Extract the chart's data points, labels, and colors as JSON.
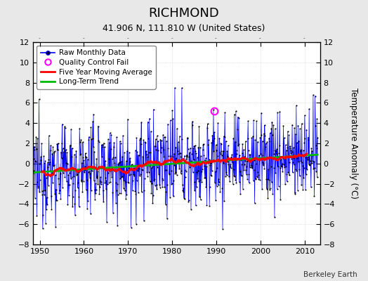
{
  "title": "RICHMOND",
  "subtitle": "41.906 N, 111.810 W (United States)",
  "ylabel": "Temperature Anomaly (°C)",
  "credit": "Berkeley Earth",
  "xlim": [
    1948.5,
    2013.5
  ],
  "ylim": [
    -8,
    12
  ],
  "yticks": [
    -8,
    -6,
    -4,
    -2,
    0,
    2,
    4,
    6,
    8,
    10,
    12
  ],
  "xticks": [
    1950,
    1960,
    1970,
    1980,
    1990,
    2000,
    2010
  ],
  "background_color": "#e8e8e8",
  "plot_bg_color": "#ffffff",
  "raw_line_color": "#0000ff",
  "raw_marker_color": "#000000",
  "moving_avg_color": "#ff0000",
  "trend_color": "#00bb00",
  "qc_fail_color": "#ff00ff",
  "fill_color": "#aaaaff",
  "fill_alpha": 0.5,
  "seed": 12345,
  "n_years": 65,
  "start_year": 1948,
  "qc_x": 1989.5,
  "qc_y": 5.2
}
